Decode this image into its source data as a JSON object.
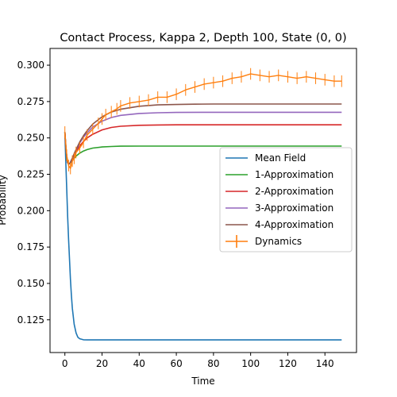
{
  "chart_data": {
    "type": "line",
    "title": "Contact Process, Kappa 2, Depth 100, State (0, 0)",
    "xlabel": "Time",
    "ylabel": "Probability",
    "xlim": [
      -8,
      157
    ],
    "ylim": [
      0.1025,
      0.3115
    ],
    "xticks": [
      0,
      20,
      40,
      60,
      80,
      100,
      120,
      140
    ],
    "yticks": [
      0.125,
      0.15,
      0.175,
      0.2,
      0.225,
      0.25,
      0.275,
      0.3
    ],
    "ytick_labels": [
      "0.125",
      "0.150",
      "0.175",
      "0.200",
      "0.225",
      "0.250",
      "0.275",
      "0.300"
    ],
    "legend_position": "center-right",
    "series": [
      {
        "name": "Mean Field",
        "color": "#1f77b4",
        "kind": "line",
        "x": [
          0,
          0.5,
          1,
          1.5,
          2,
          2.5,
          3,
          3.5,
          4,
          5,
          6,
          7,
          8,
          10,
          12,
          15,
          20,
          30,
          50,
          75,
          100,
          125,
          149
        ],
        "y": [
          0.254,
          0.233,
          0.214,
          0.196,
          0.18,
          0.166,
          0.153,
          0.142,
          0.133,
          0.122,
          0.116,
          0.113,
          0.112,
          0.1113,
          0.1112,
          0.1112,
          0.1112,
          0.1112,
          0.1112,
          0.1112,
          0.1112,
          0.1112,
          0.1112
        ]
      },
      {
        "name": "1-Approximation",
        "color": "#2ca02c",
        "kind": "line",
        "x": [
          0,
          0.5,
          1,
          1.5,
          2,
          2.5,
          3,
          4,
          5,
          6,
          8,
          10,
          12,
          15,
          20,
          25,
          30,
          40,
          50,
          75,
          100,
          125,
          149
        ],
        "y": [
          0.254,
          0.243,
          0.236,
          0.233,
          0.232,
          0.2322,
          0.2328,
          0.2345,
          0.236,
          0.2375,
          0.2395,
          0.241,
          0.242,
          0.243,
          0.2438,
          0.2441,
          0.2443,
          0.2444,
          0.2444,
          0.2444,
          0.2444,
          0.2444,
          0.2444
        ]
      },
      {
        "name": "2-Approximation",
        "color": "#d62728",
        "kind": "line",
        "x": [
          0,
          0.5,
          1,
          1.5,
          2,
          2.5,
          3,
          4,
          5,
          6,
          8,
          10,
          12,
          15,
          20,
          25,
          30,
          40,
          50,
          60,
          75,
          100,
          125,
          149
        ],
        "y": [
          0.254,
          0.244,
          0.237,
          0.233,
          0.232,
          0.2323,
          0.233,
          0.2355,
          0.238,
          0.2405,
          0.2445,
          0.2475,
          0.25,
          0.2525,
          0.2555,
          0.2572,
          0.258,
          0.2587,
          0.2589,
          0.259,
          0.259,
          0.259,
          0.259,
          0.259
        ]
      },
      {
        "name": "3-Approximation",
        "color": "#9467bd",
        "kind": "line",
        "x": [
          0,
          0.5,
          1,
          1.5,
          2,
          2.5,
          3,
          4,
          5,
          6,
          8,
          10,
          12,
          15,
          20,
          25,
          30,
          40,
          50,
          60,
          75,
          100,
          125,
          149
        ],
        "y": [
          0.254,
          0.244,
          0.237,
          0.233,
          0.232,
          0.2324,
          0.2332,
          0.236,
          0.2388,
          0.2415,
          0.2465,
          0.2505,
          0.2535,
          0.2575,
          0.2615,
          0.264,
          0.2655,
          0.2668,
          0.2673,
          0.2675,
          0.2676,
          0.2676,
          0.2676,
          0.2676
        ]
      },
      {
        "name": "4-Approximation",
        "color": "#8c564b",
        "kind": "line",
        "x": [
          0,
          0.5,
          1,
          1.5,
          2,
          2.5,
          3,
          4,
          5,
          6,
          8,
          10,
          12,
          15,
          20,
          25,
          30,
          40,
          50,
          60,
          70,
          80,
          100,
          125,
          149
        ],
        "y": [
          0.254,
          0.244,
          0.237,
          0.233,
          0.232,
          0.2324,
          0.2333,
          0.2362,
          0.2392,
          0.242,
          0.2472,
          0.2515,
          0.255,
          0.2595,
          0.2645,
          0.2678,
          0.2697,
          0.2718,
          0.2727,
          0.273,
          0.2732,
          0.2733,
          0.2733,
          0.2733,
          0.2733
        ]
      },
      {
        "name": "Dynamics",
        "color": "#ff7f0e",
        "kind": "errorbar",
        "x": [
          0,
          1,
          2,
          3,
          4,
          5,
          6,
          8,
          10,
          12,
          15,
          18,
          20,
          22,
          25,
          28,
          30,
          35,
          40,
          45,
          50,
          55,
          60,
          65,
          70,
          75,
          80,
          85,
          90,
          95,
          100,
          105,
          110,
          115,
          120,
          125,
          130,
          135,
          140,
          145,
          149
        ],
        "y": [
          0.254,
          0.238,
          0.231,
          0.229,
          0.234,
          0.236,
          0.24,
          0.243,
          0.247,
          0.252,
          0.256,
          0.26,
          0.263,
          0.266,
          0.268,
          0.27,
          0.272,
          0.274,
          0.275,
          0.276,
          0.278,
          0.278,
          0.28,
          0.283,
          0.285,
          0.287,
          0.288,
          0.289,
          0.291,
          0.292,
          0.294,
          0.293,
          0.292,
          0.293,
          0.292,
          0.291,
          0.292,
          0.291,
          0.29,
          0.289,
          0.289
        ],
        "yerr": 0.004
      }
    ]
  }
}
